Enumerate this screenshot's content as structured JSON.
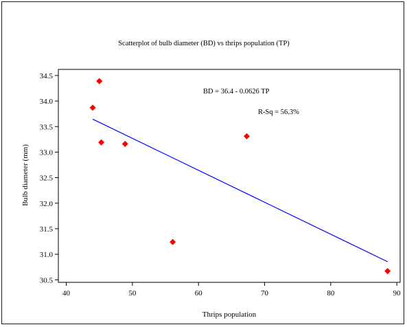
{
  "chart_data": {
    "type": "scatter",
    "title": "Scatterplot of bulb diameter (BD) vs thrips population (TP)",
    "xlabel": "Thrips population",
    "ylabel": "Bulb diameter (mm)",
    "xlim": [
      38.8,
      90.5
    ],
    "ylim": [
      30.45,
      34.62
    ],
    "xticks": [
      40,
      50,
      60,
      70,
      80,
      90
    ],
    "yticks": [
      30.5,
      31.0,
      31.5,
      32.0,
      32.5,
      33.0,
      33.5,
      34.0,
      34.5
    ],
    "ytick_labels": [
      "30.5",
      "31.0",
      "31.5",
      "32.0",
      "32.5",
      "33.0",
      "33.5",
      "34.0",
      "34.5"
    ],
    "points": [
      {
        "x": 44.0,
        "y": 33.87
      },
      {
        "x": 45.0,
        "y": 34.39
      },
      {
        "x": 45.3,
        "y": 33.19
      },
      {
        "x": 48.9,
        "y": 33.16
      },
      {
        "x": 56.1,
        "y": 31.24
      },
      {
        "x": 67.3,
        "y": 33.31
      },
      {
        "x": 88.6,
        "y": 30.67
      }
    ],
    "regression": {
      "intercept": 36.4,
      "slope": -0.0626,
      "x_range": [
        44.0,
        88.6
      ]
    },
    "annotations": {
      "equation": "BD = 36.4 - 0.0626 TP",
      "r_squared": "R-Sq = 56.3%"
    },
    "colors": {
      "points": "#ff0000",
      "line": "#0000ff",
      "axes": "#000000"
    },
    "grid": false,
    "legend": "none"
  }
}
